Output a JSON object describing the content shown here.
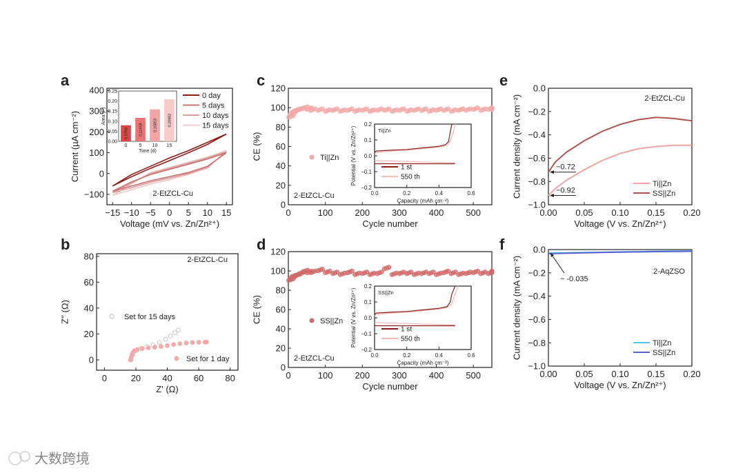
{
  "panel_letters": [
    "a",
    "b",
    "c",
    "d",
    "e",
    "f"
  ],
  "watermark": "大数跨境",
  "chart_data": [
    {
      "id": "a",
      "type": "line",
      "xlabel": "Voltage (mV vs. Zn/Zn²⁺)",
      "ylabel": "Current (µA cm⁻²)",
      "xlim": [
        -16.5,
        16.6
      ],
      "ylim": [
        -150,
        410
      ],
      "xticks": [
        -15,
        -10,
        -5,
        0,
        5,
        10,
        15
      ],
      "yticks": [
        -100,
        0,
        100,
        200,
        300,
        400
      ],
      "annotation": "2-EtZCL-Cu",
      "legend_position": "top-right",
      "series": [
        {
          "name": "0 day",
          "color": "#8b1a1a",
          "x": [
            -15,
            -10,
            -5,
            0,
            5,
            10,
            15,
            10,
            5,
            0,
            -5,
            -10,
            -15
          ],
          "y": [
            -60,
            -15,
            25,
            62,
            100,
            140,
            190,
            150,
            110,
            75,
            35,
            -5,
            -60
          ]
        },
        {
          "name": "5 days",
          "color": "#c87272",
          "x": [
            -15,
            -10,
            -5,
            0,
            5,
            10,
            15,
            10,
            5,
            0,
            -5,
            -10,
            -15
          ],
          "y": [
            -85,
            -60,
            -35,
            -15,
            5,
            35,
            100,
            70,
            45,
            20,
            -5,
            -40,
            -85
          ]
        },
        {
          "name": "10 days",
          "color": "#dc9c9c",
          "x": [
            -15,
            -10,
            -5,
            0,
            5,
            10,
            15,
            10,
            5,
            0,
            -5,
            -10,
            -15
          ],
          "y": [
            -92,
            -68,
            -42,
            -22,
            0,
            30,
            105,
            75,
            50,
            25,
            0,
            -45,
            -92
          ]
        },
        {
          "name": "15 days",
          "color": "#f0c8c8",
          "x": [
            -15,
            -10,
            -5,
            0,
            5,
            10,
            15,
            10,
            5,
            0,
            -5,
            -10,
            -15
          ],
          "y": [
            -105,
            -78,
            -50,
            -30,
            -5,
            25,
            110,
            80,
            55,
            30,
            5,
            -50,
            -105
          ]
        }
      ],
      "inset": {
        "type": "bar",
        "xlabel": "Time (d)",
        "ylabel": "Area (F)",
        "categories": [
          "0",
          "5",
          "10",
          "15"
        ],
        "values": [
          0.0798,
          0.11658,
          0.15853,
          0.20882
        ],
        "labels": [
          "0.0798",
          "0.11658",
          "0.15853",
          "0.20882"
        ],
        "colors": [
          "#e04545",
          "#e87575",
          "#f2a3a3",
          "#f8caca"
        ],
        "ylim": [
          0,
          0.25
        ],
        "yticks": [
          "0.00",
          "0.05",
          "0.10",
          "0.15",
          "0.20",
          "0.25"
        ]
      }
    },
    {
      "id": "b",
      "type": "scatter",
      "xlabel": "Z' (Ω)",
      "ylabel": "Z'' (Ω)",
      "xlim": [
        -5,
        85
      ],
      "ylim": [
        -8,
        82
      ],
      "xticks": [
        0,
        20,
        40,
        60,
        80
      ],
      "yticks": [
        0,
        20,
        40,
        60,
        80
      ],
      "annotation": "2-EtZCL-Cu",
      "series": [
        {
          "name": "Set for 15 days",
          "marker": "open-circle",
          "color": "#bbbbbb",
          "x": [
            17,
            18,
            20,
            23,
            27,
            31,
            35,
            39,
            42,
            45,
            47
          ],
          "y": [
            0,
            4,
            7,
            8.5,
            10,
            11.5,
            13.5,
            16,
            18.5,
            21,
            23
          ]
        },
        {
          "name": "Set for 1 day",
          "marker": "filled-circle",
          "color": "#f2aaaa",
          "x": [
            16.5,
            17,
            17.5,
            18,
            19,
            21,
            24,
            28,
            32,
            36,
            40,
            44,
            48,
            52,
            56,
            60,
            64,
            65
          ],
          "y": [
            0,
            2,
            4,
            5.5,
            7,
            8,
            8.8,
            9.3,
            9.8,
            10.3,
            11,
            11.8,
            12.5,
            13,
            13.4,
            13.6,
            13.7,
            13.7
          ]
        }
      ]
    },
    {
      "id": "c",
      "type": "scatter",
      "xlabel": "Cycle number",
      "ylabel": "CE (%)",
      "xlim": [
        0,
        550
      ],
      "ylim": [
        0,
        120
      ],
      "xticks": [
        0,
        100,
        200,
        300,
        400,
        500
      ],
      "yticks": [
        0,
        20,
        40,
        60,
        80,
        100,
        120
      ],
      "annotation": "2-EtZCL-Cu",
      "series": [
        {
          "name": "Ti||Zn",
          "color": "#f2a8a8",
          "x": [
            1,
            5,
            10,
            15,
            20,
            30,
            40,
            50,
            60,
            80,
            100,
            120,
            140,
            160,
            180,
            200,
            220,
            240,
            260,
            280,
            300,
            320,
            340,
            360,
            380,
            400,
            420,
            440,
            460,
            480,
            500,
            520,
            540,
            550
          ],
          "y": [
            91,
            94,
            96,
            97,
            98,
            99,
            100,
            99,
            98,
            98,
            97,
            98,
            97,
            98,
            97,
            98,
            97,
            98,
            98,
            97,
            98,
            97,
            98,
            98,
            97,
            98,
            98,
            97,
            98,
            98,
            99,
            98,
            99,
            99
          ]
        }
      ],
      "inset": {
        "title": "Ti||Zn",
        "xlabel": "Capacity (mAh cm⁻²)",
        "ylabel": "Potential (V vs. Zn/Zn²⁺)",
        "xlim": [
          0,
          0.6
        ],
        "ylim": [
          -0.2,
          0.2
        ],
        "xticks": [
          "0.0",
          "0.2",
          "0.4",
          "0.6"
        ],
        "yticks": [
          "-0.2",
          "-0.1",
          "0.0",
          "0.1",
          "0.2"
        ],
        "series": [
          {
            "name": "1 st",
            "color": "#8b1a1a",
            "charge_x": [
              0,
              0.01,
              0.1,
              0.2,
              0.3,
              0.4,
              0.44,
              0.46,
              0.47,
              0.48
            ],
            "charge_y": [
              0.02,
              0.03,
              0.035,
              0.04,
              0.05,
              0.06,
              0.07,
              0.09,
              0.15,
              0.2
            ],
            "discharge_x": [
              0,
              0.5
            ],
            "discharge_y": [
              -0.05,
              -0.05
            ]
          },
          {
            "name": "550 th",
            "color": "#f2b8b8",
            "charge_x": [
              0,
              0.01,
              0.1,
              0.2,
              0.3,
              0.4,
              0.45,
              0.47,
              0.49,
              0.5
            ],
            "charge_y": [
              0.01,
              0.02,
              0.03,
              0.035,
              0.045,
              0.055,
              0.065,
              0.09,
              0.15,
              0.2
            ],
            "discharge_x": [
              0,
              0.5
            ],
            "discharge_y": [
              -0.03,
              -0.045
            ]
          }
        ]
      }
    },
    {
      "id": "d",
      "type": "scatter",
      "xlabel": "Cycle number",
      "ylabel": "CE (%)",
      "xlim": [
        0,
        550
      ],
      "ylim": [
        0,
        120
      ],
      "xticks": [
        0,
        100,
        200,
        300,
        400,
        500
      ],
      "yticks": [
        0,
        20,
        40,
        60,
        80,
        100,
        120
      ],
      "annotation": "2-EtZCL-Cu",
      "series": [
        {
          "name": "SS||Zn",
          "color": "#d06a6a",
          "x": [
            1,
            5,
            10,
            20,
            30,
            40,
            50,
            60,
            80,
            100,
            120,
            140,
            160,
            180,
            200,
            220,
            240,
            260,
            280,
            300,
            320,
            340,
            360,
            380,
            400,
            420,
            440,
            460,
            480,
            500,
            520,
            540,
            550
          ],
          "y": [
            91,
            93,
            95,
            96,
            98,
            100,
            99,
            99,
            101,
            99,
            98,
            97,
            99,
            97,
            98,
            97,
            98,
            103,
            97,
            98,
            98,
            97,
            98,
            98,
            97,
            99,
            98,
            97,
            98,
            99,
            98,
            98,
            99
          ]
        }
      ],
      "inset": {
        "title": "SS||Zn",
        "xlabel": "Capacity (mAh cm⁻²)",
        "ylabel": "Potential (V vs. Zn/Zn²⁺)",
        "xlim": [
          0,
          0.6
        ],
        "ylim": [
          -0.2,
          0.2
        ],
        "xticks": [
          "0.0",
          "0.2",
          "0.4",
          "0.6"
        ],
        "yticks": [
          "-0.2",
          "-0.1",
          "0.0",
          "0.1",
          "0.2"
        ],
        "series": [
          {
            "name": "1 st",
            "color": "#8b1a1a",
            "charge_x": [
              0,
              0.01,
              0.1,
              0.2,
              0.3,
              0.4,
              0.45,
              0.47,
              0.48,
              0.5
            ],
            "charge_y": [
              0.02,
              0.03,
              0.035,
              0.04,
              0.05,
              0.06,
              0.07,
              0.1,
              0.15,
              0.2
            ],
            "discharge_x": [
              0,
              0.5
            ],
            "discharge_y": [
              -0.05,
              -0.05
            ]
          },
          {
            "name": "550 th",
            "color": "#f2b8b8",
            "charge_x": [
              0,
              0.01,
              0.1,
              0.2,
              0.3,
              0.4,
              0.45,
              0.48,
              0.5,
              0.52
            ],
            "charge_y": [
              0.01,
              0.02,
              0.03,
              0.035,
              0.045,
              0.055,
              0.065,
              0.09,
              0.15,
              0.2
            ],
            "discharge_x": [
              0,
              0.5
            ],
            "discharge_y": [
              -0.03,
              -0.045
            ]
          }
        ]
      }
    },
    {
      "id": "e",
      "type": "line",
      "xlabel": "Voltage (V vs. Zn/Zn²⁺)",
      "ylabel": "Current density (mA cm⁻²)",
      "xlim": [
        0,
        0.2
      ],
      "ylim": [
        -1.0,
        0.0
      ],
      "xticks": [
        "0.00",
        "0.05",
        "0.10",
        "0.15",
        "0.20"
      ],
      "yticks": [
        "-1.0",
        "-0.8",
        "-0.6",
        "-0.4",
        "-0.2",
        "0.0"
      ],
      "annotation": "2-EtZCL-Cu",
      "callouts": [
        "-0.72",
        "-0.92"
      ],
      "series": [
        {
          "name": "Ti||Zn",
          "color": "#f0a4a4",
          "x": [
            0,
            0.01,
            0.025,
            0.05,
            0.075,
            0.1,
            0.125,
            0.15,
            0.175,
            0.2
          ],
          "y": [
            -0.92,
            -0.86,
            -0.79,
            -0.7,
            -0.62,
            -0.56,
            -0.52,
            -0.5,
            -0.49,
            -0.49
          ]
        },
        {
          "name": "SS||Zn",
          "color": "#b05252",
          "x": [
            0,
            0.01,
            0.025,
            0.05,
            0.075,
            0.1,
            0.125,
            0.15,
            0.175,
            0.2
          ],
          "y": [
            -0.72,
            -0.63,
            -0.55,
            -0.45,
            -0.37,
            -0.31,
            -0.27,
            -0.25,
            -0.26,
            -0.28
          ]
        }
      ]
    },
    {
      "id": "f",
      "type": "line",
      "xlabel": "Voltage (V vs. Zn/Zn²⁺)",
      "ylabel": "Current density (mA cm⁻²)",
      "xlim": [
        0,
        0.2
      ],
      "ylim": [
        -1.0,
        0.0
      ],
      "xticks": [
        "0.00",
        "0.05",
        "0.10",
        "0.15",
        "0.20"
      ],
      "yticks": [
        "-1.0",
        "-0.8",
        "-0.6",
        "-0.4",
        "-0.2",
        "0.0"
      ],
      "annotation": "2-AqZSO",
      "callouts": [
        "~ -0.035"
      ],
      "series": [
        {
          "name": "Ti||Zn",
          "color": "#4fc3e8",
          "x": [
            0,
            0.05,
            0.1,
            0.15,
            0.2
          ],
          "y": [
            -0.03,
            -0.025,
            -0.02,
            -0.015,
            -0.012
          ]
        },
        {
          "name": "SS||Zn",
          "color": "#5a60d0",
          "x": [
            0,
            0.05,
            0.1,
            0.15,
            0.2
          ],
          "y": [
            -0.035,
            -0.028,
            -0.022,
            -0.018,
            -0.015
          ]
        }
      ]
    }
  ]
}
